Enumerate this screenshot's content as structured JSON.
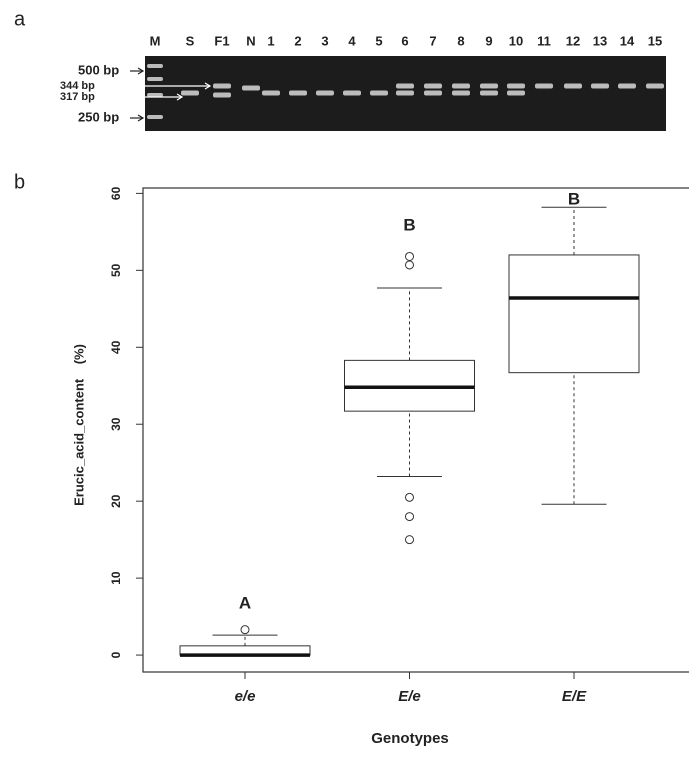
{
  "panel_labels": [
    "a",
    "b"
  ],
  "gel": {
    "lanes": [
      "M",
      "S",
      "F1",
      "N",
      "1",
      "2",
      "3",
      "4",
      "5",
      "6",
      "7",
      "8",
      "9",
      "10",
      "11",
      "12",
      "13",
      "14",
      "15"
    ],
    "markers": [
      "500 bp",
      "344 bp",
      "317 bp",
      "250 bp"
    ]
  },
  "chart_data": {
    "type": "box",
    "categories": [
      "e/e",
      "E/e",
      "E/E"
    ],
    "whisker_low": [
      0,
      23.2,
      19.6
    ],
    "q1": [
      0,
      31.7,
      36.7
    ],
    "median": [
      0,
      34.8,
      46.4
    ],
    "q3": [
      1.2,
      38.3,
      52.0
    ],
    "whisker_high": [
      2.6,
      47.7,
      58.2
    ],
    "outliers": [
      [
        3.3
      ],
      [
        51.8,
        50.7,
        20.5,
        18.0,
        15.0
      ],
      []
    ],
    "group_letters": [
      "A",
      "B",
      "B"
    ],
    "ylabel": "Erucic_acid_content    (%)",
    "xlabel": "Genotypes",
    "ylim": [
      -2.2,
      60.7
    ],
    "yticks": [
      0,
      10,
      20,
      30,
      40,
      50,
      60
    ]
  }
}
